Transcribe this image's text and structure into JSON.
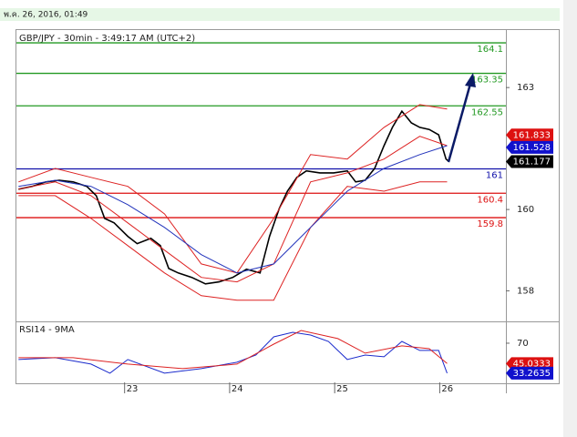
{
  "header": {
    "timestamp": "พ.ค. 26, 2016, 01:49"
  },
  "chart_data": [
    {
      "type": "line",
      "title": "GBP/JPY - 30min - 3:49:17 AM (UTC+2)",
      "xlim": [
        21.97,
        26.63
      ],
      "ylim": [
        157.27,
        164.37
      ],
      "yticks": [
        163,
        160,
        158
      ],
      "series": [
        {
          "color": "#000000",
          "width": 1.6,
          "x": [
            21.99,
            22.12,
            22.25,
            22.38,
            22.51,
            22.64,
            22.73,
            22.81,
            22.9,
            23.03,
            23.12,
            23.25,
            23.34,
            23.42,
            23.51,
            23.64,
            23.77,
            23.9,
            24.03,
            24.16,
            24.29,
            24.38,
            24.47,
            24.55,
            24.64,
            24.73,
            24.86,
            24.99,
            25.12,
            25.2,
            25.29,
            25.38,
            25.47,
            25.55,
            25.64,
            25.73,
            25.81,
            25.9,
            25.99,
            26.06,
            26.09
          ],
          "values": [
            160.5,
            160.57,
            160.68,
            160.72,
            160.68,
            160.57,
            160.34,
            159.78,
            159.67,
            159.34,
            159.16,
            159.29,
            159.11,
            158.55,
            158.44,
            158.33,
            158.17,
            158.22,
            158.33,
            158.53,
            158.44,
            159.34,
            160.01,
            160.45,
            160.79,
            160.95,
            160.9,
            160.9,
            160.95,
            160.68,
            160.72,
            161.01,
            161.57,
            162.02,
            162.42,
            162.13,
            162.02,
            161.97,
            161.84,
            161.24,
            161.177
          ]
        },
        {
          "color": "#dd2222",
          "width": 1,
          "x": [
            21.99,
            22.34,
            22.68,
            23.03,
            23.38,
            23.73,
            24.07,
            24.42,
            24.77,
            25.12,
            25.47,
            25.81,
            26.07
          ],
          "values": [
            160.68,
            161.01,
            160.79,
            160.57,
            159.89,
            158.66,
            158.44,
            159.78,
            161.35,
            161.24,
            162.02,
            162.58,
            162.47
          ]
        },
        {
          "color": "#dd2222",
          "width": 1,
          "x": [
            21.99,
            22.34,
            22.68,
            23.03,
            23.38,
            23.73,
            24.07,
            24.42,
            24.77,
            25.12,
            25.47,
            25.81,
            26.07
          ],
          "values": [
            160.34,
            160.34,
            159.78,
            159.11,
            158.44,
            157.88,
            157.77,
            157.77,
            159.56,
            160.57,
            160.45,
            160.68,
            160.68
          ]
        },
        {
          "color": "#dd2222",
          "width": 1,
          "x": [
            21.99,
            22.34,
            22.68,
            23.03,
            23.38,
            23.73,
            24.07,
            24.42,
            24.77,
            25.12,
            25.47,
            25.81,
            26.07
          ],
          "values": [
            160.5,
            160.68,
            160.34,
            159.67,
            159.0,
            158.33,
            158.22,
            158.66,
            160.68,
            160.9,
            161.24,
            161.8,
            161.57
          ]
        },
        {
          "color": "#2233bb",
          "width": 1,
          "x": [
            21.99,
            22.34,
            22.68,
            23.03,
            23.38,
            23.73,
            24.07,
            24.42,
            24.77,
            25.12,
            25.47,
            25.81,
            26.07
          ],
          "values": [
            160.57,
            160.72,
            160.57,
            160.12,
            159.56,
            158.89,
            158.44,
            158.66,
            159.56,
            160.45,
            161.01,
            161.35,
            161.57
          ]
        }
      ],
      "levels": [
        {
          "value": 164.1,
          "color": "#229922"
        },
        {
          "value": 163.35,
          "color": "#229922"
        },
        {
          "value": 162.55,
          "color": "#229922"
        },
        {
          "value": 161,
          "color": "#1111aa"
        },
        {
          "value": 160.4,
          "color": "#dd1111"
        },
        {
          "value": 159.8,
          "color": "#dd1111"
        }
      ],
      "price_labels": [
        {
          "value": 161.833,
          "color": "#dd1111"
        },
        {
          "value": 161.528,
          "color": "#1111cc"
        },
        {
          "value": 161.177,
          "color": "#000000"
        }
      ]
    },
    {
      "type": "line",
      "title": "RSI14 - 9MA",
      "xlim": [
        21.97,
        26.63
      ],
      "ylim": [
        22,
        94.5
      ],
      "yticks": [
        70
      ],
      "xticks": [
        23,
        24,
        25,
        26
      ],
      "series": [
        {
          "color": "#1a2acc",
          "width": 1,
          "x": [
            21.99,
            22.34,
            22.68,
            22.86,
            23.03,
            23.38,
            23.73,
            24.07,
            24.25,
            24.42,
            24.6,
            24.77,
            24.94,
            25.12,
            25.29,
            25.47,
            25.64,
            25.81,
            25.99,
            26.07
          ],
          "values": [
            50.0,
            52.2,
            44.4,
            33.3,
            50.0,
            33.3,
            38.8,
            46.6,
            55.5,
            77.8,
            83.4,
            80.0,
            72.2,
            50.0,
            55.5,
            53.3,
            72.2,
            61.1,
            61.1,
            33.2635
          ]
        },
        {
          "color": "#dd2222",
          "width": 1,
          "x": [
            21.99,
            22.51,
            23.03,
            23.55,
            24.07,
            24.42,
            24.68,
            25.03,
            25.29,
            25.64,
            25.9,
            26.07
          ],
          "values": [
            52.2,
            52.2,
            44.4,
            38.8,
            44.4,
            68.9,
            85.6,
            75.6,
            57.8,
            66.7,
            63.3,
            45.0333
          ]
        }
      ],
      "price_labels": [
        {
          "value": 45.0333,
          "color": "#dd1111"
        },
        {
          "value": 33.2635,
          "color": "#1111cc"
        }
      ]
    }
  ]
}
